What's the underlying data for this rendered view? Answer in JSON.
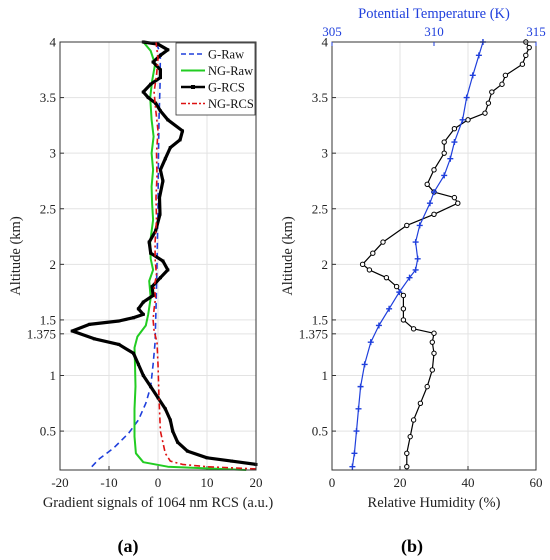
{
  "panel_labels": [
    "(a)",
    "(b)"
  ],
  "chart_data": [
    {
      "type": "line",
      "panel": "(a)",
      "xlabel": "Gradient signals of 1064 nm RCS (a.u.)",
      "ylabel": "Altitude (km)",
      "xlim": [
        -20,
        20
      ],
      "ylim": [
        0.15,
        4
      ],
      "xticks": [
        "-20",
        "-10",
        "0",
        "10",
        "20"
      ],
      "yticks": [
        {
          "v": 0.5,
          "label": "0.5"
        },
        {
          "v": 1,
          "label": "1"
        },
        {
          "v": 1.375,
          "label": "1.375"
        },
        {
          "v": 1.5,
          "label": "1.5"
        },
        {
          "v": 2,
          "label": "2"
        },
        {
          "v": 2.5,
          "label": "2.5"
        },
        {
          "v": 3,
          "label": "3"
        },
        {
          "v": 3.5,
          "label": "3.5"
        },
        {
          "v": 4,
          "label": "4"
        }
      ],
      "grid": true,
      "legend_position": "top-right",
      "series": [
        {
          "name": "G-Raw",
          "color": "#1f3fdc",
          "style": "dashed",
          "points": [
            [
              -13.5,
              0.18
            ],
            [
              -12,
              0.25
            ],
            [
              -9,
              0.35
            ],
            [
              -6,
              0.48
            ],
            [
              -4,
              0.6
            ],
            [
              -2.5,
              0.75
            ],
            [
              -1.5,
              0.9
            ],
            [
              -1,
              1.1
            ],
            [
              -0.6,
              1.3
            ],
            [
              -0.4,
              1.6
            ],
            [
              -0.2,
              2
            ],
            [
              0,
              2.5
            ],
            [
              0.1,
              3
            ],
            [
              0.2,
              3.3
            ],
            [
              0.4,
              3.6
            ],
            [
              0.5,
              3.9
            ],
            [
              -0.5,
              4.0
            ]
          ]
        },
        {
          "name": "NG-Raw",
          "color": "#22cc22",
          "style": "solid",
          "points": [
            [
              18,
              0.15
            ],
            [
              2,
              0.18
            ],
            [
              -3,
              0.22
            ],
            [
              -4.5,
              0.3
            ],
            [
              -4.8,
              0.45
            ],
            [
              -4.8,
              0.7
            ],
            [
              -4.6,
              0.9
            ],
            [
              -4.7,
              1.1
            ],
            [
              -4.8,
              1.25
            ],
            [
              -4.2,
              1.35
            ],
            [
              -2.5,
              1.45
            ],
            [
              -2,
              1.55
            ],
            [
              -1.5,
              1.7
            ],
            [
              -1.8,
              1.85
            ],
            [
              -1,
              1.95
            ],
            [
              -1.5,
              2.05
            ],
            [
              -1.6,
              2.2
            ],
            [
              -1,
              2.4
            ],
            [
              -1.2,
              2.55
            ],
            [
              -1.3,
              2.7
            ],
            [
              -1,
              2.85
            ],
            [
              -1.3,
              3.0
            ],
            [
              -0.9,
              3.15
            ],
            [
              -1.3,
              3.3
            ],
            [
              -1.6,
              3.5
            ],
            [
              -1.2,
              3.65
            ],
            [
              -0.6,
              3.8
            ],
            [
              -1.5,
              3.92
            ],
            [
              -3,
              4.0
            ]
          ]
        },
        {
          "name": "G-RCS",
          "color": "#000000",
          "style": "line-marker",
          "points": [
            [
              20,
              0.2
            ],
            [
              15,
              0.23
            ],
            [
              10,
              0.26
            ],
            [
              6,
              0.32
            ],
            [
              4,
              0.4
            ],
            [
              3,
              0.5
            ],
            [
              2.5,
              0.6
            ],
            [
              1.5,
              0.7
            ],
            [
              0,
              0.8
            ],
            [
              -1.5,
              0.9
            ],
            [
              -3,
              1.0
            ],
            [
              -4,
              1.1
            ],
            [
              -5,
              1.2
            ],
            [
              -8,
              1.28
            ],
            [
              -13,
              1.33
            ],
            [
              -17.5,
              1.4
            ],
            [
              -14,
              1.46
            ],
            [
              -8,
              1.49
            ],
            [
              -5,
              1.52
            ],
            [
              -3,
              1.55
            ],
            [
              -4,
              1.6
            ],
            [
              -3,
              1.66
            ],
            [
              -1,
              1.72
            ],
            [
              -1.2,
              1.8
            ],
            [
              0.5,
              1.88
            ],
            [
              2,
              1.95
            ],
            [
              1,
              2.03
            ],
            [
              -1.5,
              2.1
            ],
            [
              -1.8,
              2.2
            ],
            [
              -0.5,
              2.3
            ],
            [
              0.4,
              2.45
            ],
            [
              0.3,
              2.6
            ],
            [
              1,
              2.75
            ],
            [
              0.5,
              2.85
            ],
            [
              1.5,
              2.95
            ],
            [
              2.5,
              3.05
            ],
            [
              4.5,
              3.12
            ],
            [
              5,
              3.2
            ],
            [
              2,
              3.3
            ],
            [
              0.5,
              3.38
            ],
            [
              -0.5,
              3.45
            ],
            [
              -2,
              3.5
            ],
            [
              -3,
              3.55
            ],
            [
              -1.5,
              3.62
            ],
            [
              0.5,
              3.68
            ],
            [
              0.5,
              3.75
            ],
            [
              -1,
              3.82
            ],
            [
              0.5,
              3.88
            ],
            [
              2,
              3.93
            ],
            [
              0,
              3.98
            ],
            [
              -3,
              4.0
            ]
          ]
        },
        {
          "name": "NG-RCS",
          "color": "#dd1111",
          "style": "dashdot",
          "points": [
            [
              20,
              0.16
            ],
            [
              10,
              0.18
            ],
            [
              5,
              0.2
            ],
            [
              2.5,
              0.23
            ],
            [
              1.5,
              0.3
            ],
            [
              0.5,
              0.5
            ],
            [
              0.2,
              0.8
            ],
            [
              0,
              1.1
            ],
            [
              -0.2,
              1.3
            ],
            [
              -0.8,
              1.4
            ],
            [
              -1,
              1.5
            ],
            [
              -0.8,
              1.6
            ],
            [
              -0.5,
              1.7
            ],
            [
              -0.8,
              1.8
            ],
            [
              -0.3,
              1.9
            ],
            [
              -0.6,
              2.05
            ],
            [
              -0.6,
              2.2
            ],
            [
              -0.3,
              2.4
            ],
            [
              -0.4,
              2.6
            ],
            [
              -0.2,
              2.8
            ],
            [
              -0.3,
              3.0
            ],
            [
              0,
              3.2
            ],
            [
              -0.5,
              3.4
            ],
            [
              -0.8,
              3.55
            ],
            [
              -0.3,
              3.7
            ],
            [
              0,
              3.85
            ],
            [
              -0.4,
              4.0
            ]
          ]
        }
      ]
    },
    {
      "type": "line",
      "panel": "(b)",
      "xlabel": "Relative Humidity (%)",
      "ylabel": "Altitude (km)",
      "x2label": "Potential Temperature (K)",
      "xlim": [
        0,
        60
      ],
      "x2lim": [
        305,
        315
      ],
      "ylim": [
        0.15,
        4
      ],
      "xticks": [
        "0",
        "20",
        "40",
        "60"
      ],
      "x2ticks": [
        "305",
        "310",
        "315"
      ],
      "yticks": [
        {
          "v": 0.5,
          "label": "0.5"
        },
        {
          "v": 1,
          "label": "1"
        },
        {
          "v": 1.375,
          "label": "1.375"
        },
        {
          "v": 1.5,
          "label": "1.5"
        },
        {
          "v": 2,
          "label": "2"
        },
        {
          "v": 2.5,
          "label": "2.5"
        },
        {
          "v": 3,
          "label": "3"
        },
        {
          "v": 3.5,
          "label": "3.5"
        },
        {
          "v": 4,
          "label": "4"
        }
      ],
      "grid": true,
      "series": [
        {
          "color": "#000000",
          "axis": "bottom",
          "marker": "circle",
          "points": [
            [
              22,
              0.18
            ],
            [
              22,
              0.3
            ],
            [
              23,
              0.45
            ],
            [
              24,
              0.6
            ],
            [
              26,
              0.75
            ],
            [
              28,
              0.9
            ],
            [
              29.5,
              1.05
            ],
            [
              30,
              1.2
            ],
            [
              29.5,
              1.3
            ],
            [
              30,
              1.38
            ],
            [
              24,
              1.42
            ],
            [
              21,
              1.5
            ],
            [
              21,
              1.6
            ],
            [
              21,
              1.72
            ],
            [
              19,
              1.8
            ],
            [
              16,
              1.88
            ],
            [
              11,
              1.95
            ],
            [
              9,
              2.0
            ],
            [
              12,
              2.1
            ],
            [
              15,
              2.2
            ],
            [
              22,
              2.35
            ],
            [
              30,
              2.45
            ],
            [
              37,
              2.55
            ],
            [
              36,
              2.6
            ],
            [
              30,
              2.65
            ],
            [
              28,
              2.72
            ],
            [
              30,
              2.85
            ],
            [
              33,
              3.0
            ],
            [
              33,
              3.1
            ],
            [
              36,
              3.22
            ],
            [
              40,
              3.3
            ],
            [
              45,
              3.36
            ],
            [
              46,
              3.45
            ],
            [
              47,
              3.55
            ],
            [
              50,
              3.62
            ],
            [
              51,
              3.7
            ],
            [
              56,
              3.8
            ],
            [
              57,
              3.88
            ],
            [
              58,
              3.95
            ],
            [
              57,
              4.0
            ]
          ]
        },
        {
          "color": "#1f3fdc",
          "axis": "top",
          "marker": "plus",
          "points": [
            [
              306.0,
              0.18
            ],
            [
              306.1,
              0.3
            ],
            [
              306.2,
              0.5
            ],
            [
              306.3,
              0.7
            ],
            [
              306.4,
              0.9
            ],
            [
              306.6,
              1.1
            ],
            [
              306.9,
              1.3
            ],
            [
              307.3,
              1.45
            ],
            [
              307.8,
              1.6
            ],
            [
              308.3,
              1.75
            ],
            [
              308.8,
              1.88
            ],
            [
              309.1,
              1.95
            ],
            [
              309.2,
              2.05
            ],
            [
              309.1,
              2.2
            ],
            [
              309.3,
              2.35
            ],
            [
              309.8,
              2.55
            ],
            [
              310.0,
              2.65
            ],
            [
              310.5,
              2.8
            ],
            [
              310.8,
              2.95
            ],
            [
              311.0,
              3.1
            ],
            [
              311.4,
              3.3
            ],
            [
              311.6,
              3.5
            ],
            [
              311.9,
              3.7
            ],
            [
              312.2,
              3.88
            ],
            [
              312.4,
              4.0
            ]
          ]
        }
      ]
    }
  ]
}
